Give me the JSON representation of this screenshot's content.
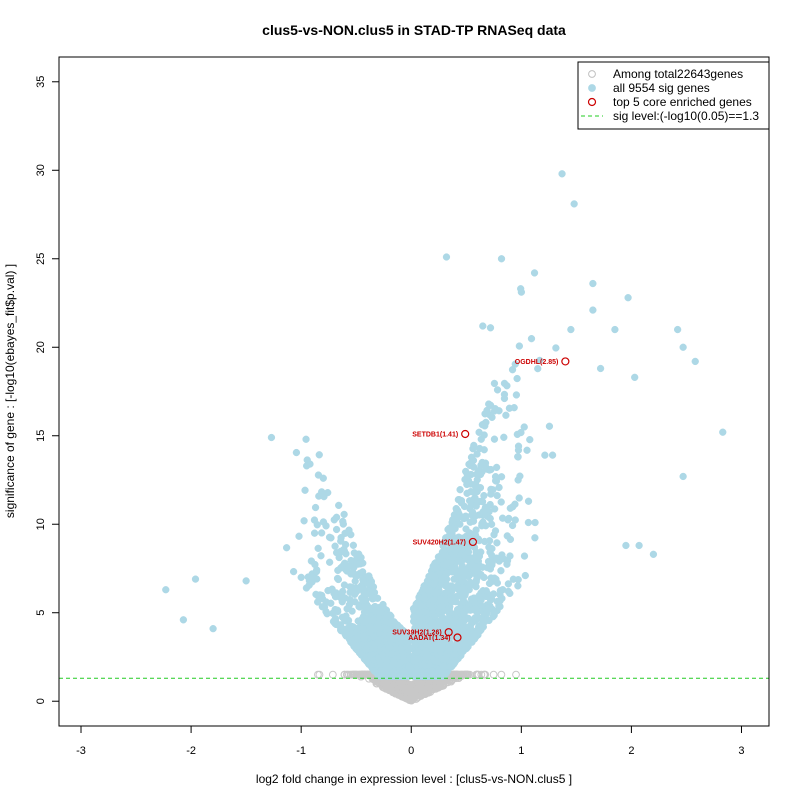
{
  "chart_data": {
    "type": "scatter",
    "title": "clus5-vs-NON.clus5 in STAD-TP RNASeq data",
    "xlabel": "log2 fold change in expression level : [clus5-vs-NON.clus5 ]",
    "ylabel": "significance of gene : [-log10(ebayes_fit$p.val) ]",
    "xlim": [
      -3.2,
      3.25
    ],
    "ylim": [
      -1.4,
      36.4
    ],
    "xticks": [
      "-3",
      "-2",
      "-1",
      "0",
      "1",
      "2",
      "3"
    ],
    "yticks": [
      "0",
      "5",
      "10",
      "15",
      "20",
      "25",
      "30",
      "35"
    ],
    "grid": false,
    "legend": {
      "position": "top-right",
      "entries": [
        "Among total22643genes",
        "all 9554 sig genes",
        "top 5 core enriched genes",
        "sig level:(-log10(0.05)==1.3"
      ]
    },
    "sig_level": 1.3,
    "colors": {
      "all_genes": "#c8c8c8",
      "sig_genes": "#add8e6",
      "core_genes": "#cc0000",
      "sig_line": "#22cc22"
    },
    "sig_points_highlighted": [
      {
        "x": 1.37,
        "y": 29.8
      },
      {
        "x": 1.48,
        "y": 28.1
      },
      {
        "x": 0.32,
        "y": 25.1
      },
      {
        "x": 0.82,
        "y": 25.0
      },
      {
        "x": 1.12,
        "y": 24.2
      },
      {
        "x": 1.65,
        "y": 23.6
      },
      {
        "x": 1.97,
        "y": 22.8
      },
      {
        "x": 1.65,
        "y": 22.1
      },
      {
        "x": 2.42,
        "y": 21.0
      },
      {
        "x": 1.45,
        "y": 21.0
      },
      {
        "x": 1.85,
        "y": 21.0
      },
      {
        "x": 0.65,
        "y": 21.2
      },
      {
        "x": 0.72,
        "y": 21.1
      },
      {
        "x": 2.47,
        "y": 20.0
      },
      {
        "x": 2.58,
        "y": 19.2
      },
      {
        "x": 1.72,
        "y": 18.8
      },
      {
        "x": 2.03,
        "y": 18.3
      },
      {
        "x": 2.83,
        "y": 15.2
      },
      {
        "x": -1.27,
        "y": 14.9
      },
      {
        "x": 2.47,
        "y": 12.7
      },
      {
        "x": 1.95,
        "y": 8.8
      },
      {
        "x": 2.07,
        "y": 8.8
      },
      {
        "x": 2.2,
        "y": 8.3
      },
      {
        "x": -2.23,
        "y": 6.3
      },
      {
        "x": -1.96,
        "y": 6.9
      },
      {
        "x": -2.07,
        "y": 4.6
      },
      {
        "x": -1.8,
        "y": 4.1
      },
      {
        "x": -1.5,
        "y": 6.8
      },
      {
        "x": -0.92,
        "y": 13.4
      },
      {
        "x": -0.95,
        "y": 13.3
      }
    ],
    "core_genes": [
      {
        "label": "OGDHL(2.85)",
        "x": 1.4,
        "y": 19.2
      },
      {
        "label": "SETDB1(1.41)",
        "x": 0.49,
        "y": 15.1
      },
      {
        "label": "SUV420H2(1.47)",
        "x": 0.56,
        "y": 9.0
      },
      {
        "label": "SUV39H2(1.26)",
        "x": 0.34,
        "y": 3.9
      },
      {
        "label": "AADAT(1.34)",
        "x": 0.42,
        "y": 3.6
      }
    ]
  }
}
